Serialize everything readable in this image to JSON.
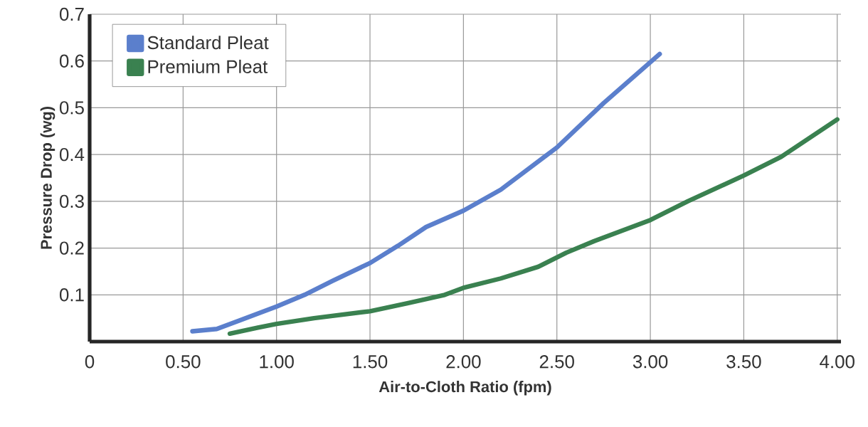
{
  "chart_data": {
    "type": "line",
    "xlabel": "Air-to-Cloth Ratio (fpm)",
    "ylabel": "Pressure Drop (wg)",
    "xlim": [
      0,
      4.02
    ],
    "ylim": [
      0,
      0.7
    ],
    "xticks": [
      0,
      {
        "value": 0.5,
        "label": "0.50"
      },
      {
        "value": 1.0,
        "label": "1.00"
      },
      {
        "value": 1.5,
        "label": "1.50"
      },
      {
        "value": 2.0,
        "label": "2.00"
      },
      {
        "value": 2.5,
        "label": "2.50"
      },
      {
        "value": 3.0,
        "label": "3.00"
      },
      {
        "value": 3.5,
        "label": "3.50"
      },
      {
        "value": 4.0,
        "label": "4.00"
      }
    ],
    "yticks": [
      0.1,
      0.2,
      0.3,
      0.4,
      0.5,
      0.6,
      0.7
    ],
    "grid": true,
    "legend": "top left",
    "line_style": "solid",
    "series": [
      {
        "name": "Standard Pleat",
        "color": "#5b7fcc",
        "x": [
          0.55,
          0.68,
          0.8,
          1.0,
          1.15,
          1.3,
          1.5,
          1.65,
          1.8,
          2.0,
          2.2,
          2.3,
          2.5,
          2.75,
          3.05
        ],
        "values": [
          0.022,
          0.027,
          0.045,
          0.075,
          0.1,
          0.13,
          0.168,
          0.205,
          0.245,
          0.28,
          0.325,
          0.355,
          0.415,
          0.51,
          0.615
        ]
      },
      {
        "name": "Premium Pleat",
        "color": "#3a8150",
        "x": [
          0.75,
          0.9,
          1.0,
          1.2,
          1.5,
          1.7,
          1.9,
          2.0,
          2.2,
          2.4,
          2.55,
          2.7,
          3.0,
          3.2,
          3.5,
          3.7,
          4.0
        ],
        "values": [
          0.017,
          0.03,
          0.038,
          0.05,
          0.065,
          0.082,
          0.1,
          0.115,
          0.135,
          0.16,
          0.19,
          0.215,
          0.26,
          0.3,
          0.355,
          0.395,
          0.475
        ]
      }
    ]
  }
}
